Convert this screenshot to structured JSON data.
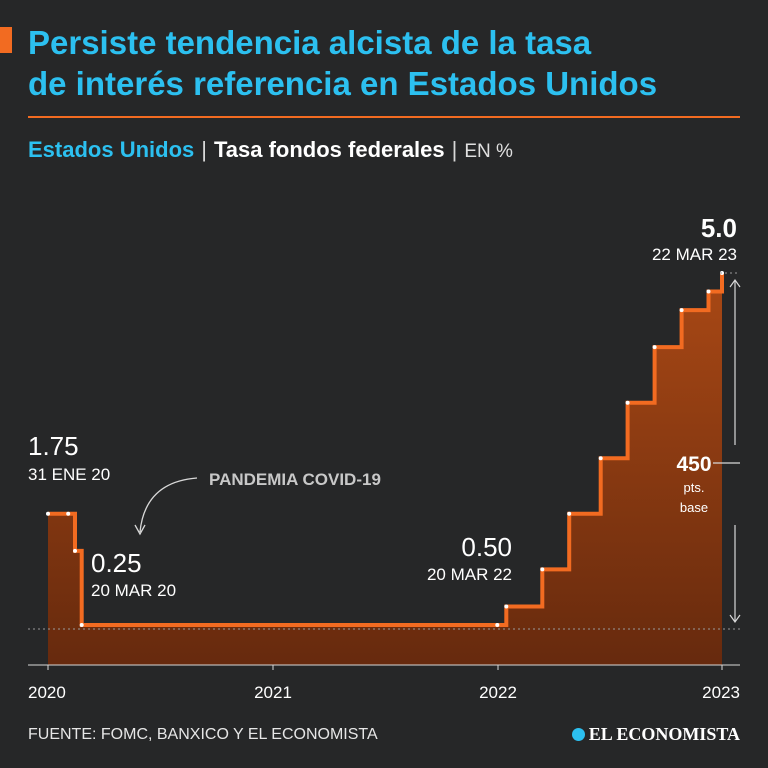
{
  "header": {
    "title_line1": "Persiste tendencia alcista de la tasa",
    "title_line2": "de interés referencia en Estados Unidos",
    "subtitle_country": "Estados Unidos",
    "subtitle_metric": "Tasa fondos federales",
    "subtitle_unit": "EN %",
    "separator": "|"
  },
  "chart_data": {
    "type": "area",
    "title": "Tasa fondos federales",
    "unit": "%",
    "x_domain": [
      2020.0,
      2023.0
    ],
    "y_domain": [
      0,
      5.0
    ],
    "steps": [
      {
        "x": 2020.0,
        "y": 1.75
      },
      {
        "x": 2020.09,
        "y": 1.75
      },
      {
        "x": 2020.12,
        "y": 1.25
      },
      {
        "x": 2020.15,
        "y": 0.25
      },
      {
        "x": 2022.0,
        "y": 0.25
      },
      {
        "x": 2022.04,
        "y": 0.5
      },
      {
        "x": 2022.2,
        "y": 1.0
      },
      {
        "x": 2022.32,
        "y": 1.75
      },
      {
        "x": 2022.46,
        "y": 2.5
      },
      {
        "x": 2022.58,
        "y": 3.25
      },
      {
        "x": 2022.7,
        "y": 4.0
      },
      {
        "x": 2022.82,
        "y": 4.5
      },
      {
        "x": 2022.94,
        "y": 4.75
      },
      {
        "x": 2023.0,
        "y": 5.0
      }
    ],
    "x_ticks": [
      "2020",
      "2021",
      "2022",
      "2023"
    ],
    "x_tick_values": [
      2020.0,
      2021.0,
      2022.0,
      2023.0
    ],
    "annotations": {
      "start": {
        "value": "1.75",
        "date": "31 ENE 20"
      },
      "covid_low": {
        "value": "0.25",
        "date": "20 MAR 20"
      },
      "hike_start": {
        "value": "0.50",
        "date": "20 MAR 22"
      },
      "latest": {
        "value": "5.0",
        "date": "22 MAR 23"
      },
      "pandemic_label": "PANDEMIA COVID-19",
      "range_value": "450",
      "range_unit_line1": "pts.",
      "range_unit_line2": "base"
    }
  },
  "footer": {
    "source": "FUENTE: FOMC, BANXICO Y EL ECONOMISTA",
    "brand": "EL ECONOMISTA"
  },
  "colors": {
    "background": "#262728",
    "accent": "#f26b21",
    "title": "#2cc0f0",
    "area_top": "#b04a14",
    "area_bottom": "#6a2a0c"
  }
}
